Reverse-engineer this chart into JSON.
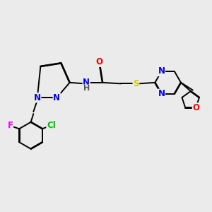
{
  "bg_color": "#ebebeb",
  "bond_color": "#000000",
  "atom_colors": {
    "N": "#0000ff",
    "O": "#ff0000",
    "S": "#cccc00",
    "F": "#ff00ff",
    "Cl": "#00bb00",
    "H": "#555555",
    "C": "#000000"
  },
  "font_size": 8.5,
  "fig_size": [
    3.0,
    3.0
  ],
  "dpi": 100
}
